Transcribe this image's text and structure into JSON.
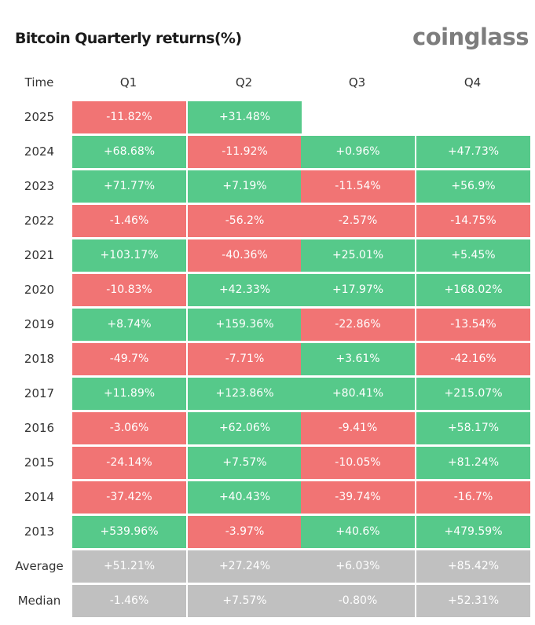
{
  "title": "Bitcoin Quarterly returns(%)",
  "logo": "coinglass",
  "colors": {
    "positive": "#56c98a",
    "negative": "#f17474",
    "summary": "#c0c0c0"
  },
  "chart_data": {
    "type": "table",
    "title": "Bitcoin Quarterly returns(%)",
    "row_header": "Time",
    "columns": [
      "Q1",
      "Q2",
      "Q3",
      "Q4"
    ],
    "rows": [
      {
        "label": "2025",
        "values": [
          "-11.82%",
          "+31.48%",
          null,
          null
        ]
      },
      {
        "label": "2024",
        "values": [
          "+68.68%",
          "-11.92%",
          "+0.96%",
          "+47.73%"
        ]
      },
      {
        "label": "2023",
        "values": [
          "+71.77%",
          "+7.19%",
          "-11.54%",
          "+56.9%"
        ]
      },
      {
        "label": "2022",
        "values": [
          "-1.46%",
          "-56.2%",
          "-2.57%",
          "-14.75%"
        ]
      },
      {
        "label": "2021",
        "values": [
          "+103.17%",
          "-40.36%",
          "+25.01%",
          "+5.45%"
        ]
      },
      {
        "label": "2020",
        "values": [
          "-10.83%",
          "+42.33%",
          "+17.97%",
          "+168.02%"
        ]
      },
      {
        "label": "2019",
        "values": [
          "+8.74%",
          "+159.36%",
          "-22.86%",
          "-13.54%"
        ]
      },
      {
        "label": "2018",
        "values": [
          "-49.7%",
          "-7.71%",
          "+3.61%",
          "-42.16%"
        ]
      },
      {
        "label": "2017",
        "values": [
          "+11.89%",
          "+123.86%",
          "+80.41%",
          "+215.07%"
        ]
      },
      {
        "label": "2016",
        "values": [
          "-3.06%",
          "+62.06%",
          "-9.41%",
          "+58.17%"
        ]
      },
      {
        "label": "2015",
        "values": [
          "-24.14%",
          "+7.57%",
          "-10.05%",
          "+81.24%"
        ]
      },
      {
        "label": "2014",
        "values": [
          "-37.42%",
          "+40.43%",
          "-39.74%",
          "-16.7%"
        ]
      },
      {
        "label": "2013",
        "values": [
          "+539.96%",
          "-3.97%",
          "+40.6%",
          "+479.59%"
        ]
      }
    ],
    "summary_rows": [
      {
        "label": "Average",
        "values": [
          "+51.21%",
          "+27.24%",
          "+6.03%",
          "+85.42%"
        ]
      },
      {
        "label": "Median",
        "values": [
          "-1.46%",
          "+7.57%",
          "-0.80%",
          "+52.31%"
        ]
      }
    ]
  }
}
